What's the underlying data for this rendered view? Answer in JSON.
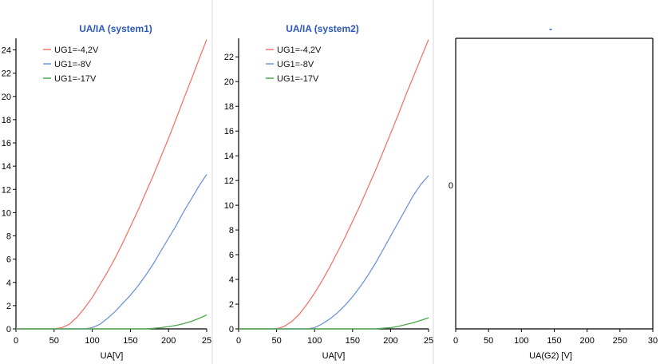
{
  "colors": {
    "series_red": "#f0786a",
    "series_blue": "#6f96d6",
    "series_green": "#4aa84a",
    "title_blue": "#2b57b8"
  },
  "chart_data": [
    {
      "type": "line",
      "title": "UA/IA (system1)",
      "xlabel": "UA[V]",
      "ylabel": "",
      "xlim": [
        0,
        250
      ],
      "ylim": [
        0,
        25
      ],
      "x_ticks": [
        "0",
        "50",
        "100",
        "150",
        "200",
        "25"
      ],
      "y_ticks": [
        "0",
        "2",
        "4",
        "6",
        "8",
        "10",
        "12",
        "14",
        "16",
        "18",
        "20",
        "22",
        "24"
      ],
      "legend_position": "top-left",
      "series": [
        {
          "name": "UG1=-4,2V",
          "color": "#f0786a",
          "x": [
            0,
            50,
            60,
            70,
            80,
            90,
            100,
            110,
            120,
            130,
            140,
            150,
            160,
            170,
            180,
            190,
            200,
            210,
            220,
            230,
            240,
            250
          ],
          "y": [
            0,
            0,
            0.1,
            0.4,
            1.0,
            1.8,
            2.7,
            3.8,
            4.9,
            6.1,
            7.4,
            8.8,
            10.2,
            11.7,
            13.2,
            14.8,
            16.4,
            18.1,
            19.8,
            21.5,
            23.2,
            24.9
          ]
        },
        {
          "name": "UG1=-8V",
          "color": "#6f96d6",
          "x": [
            0,
            90,
            100,
            110,
            120,
            130,
            140,
            150,
            160,
            170,
            180,
            190,
            200,
            210,
            220,
            230,
            240,
            250
          ],
          "y": [
            0,
            0,
            0.1,
            0.4,
            0.9,
            1.5,
            2.2,
            2.9,
            3.7,
            4.6,
            5.6,
            6.7,
            7.8,
            8.9,
            10.1,
            11.2,
            12.3,
            13.3
          ]
        },
        {
          "name": "UG1=-17V",
          "color": "#4aa84a",
          "x": [
            0,
            170,
            180,
            190,
            200,
            210,
            220,
            230,
            240,
            250
          ],
          "y": [
            0,
            0,
            0.05,
            0.1,
            0.2,
            0.3,
            0.45,
            0.65,
            0.9,
            1.2
          ]
        }
      ]
    },
    {
      "type": "line",
      "title": "UA/IA (system2)",
      "xlabel": "UA[V]",
      "ylabel": "",
      "xlim": [
        0,
        250
      ],
      "ylim": [
        0,
        23.5
      ],
      "x_ticks": [
        "0",
        "50",
        "100",
        "150",
        "200",
        "25"
      ],
      "y_ticks": [
        "0",
        "2",
        "4",
        "6",
        "8",
        "10",
        "12",
        "14",
        "16",
        "18",
        "20",
        "22"
      ],
      "legend_position": "top-left",
      "series": [
        {
          "name": "UG1=-4,2V",
          "color": "#f0786a",
          "x": [
            0,
            50,
            60,
            70,
            80,
            90,
            100,
            110,
            120,
            130,
            140,
            150,
            160,
            170,
            180,
            190,
            200,
            210,
            220,
            230,
            240,
            250
          ],
          "y": [
            0,
            0,
            0.2,
            0.6,
            1.2,
            2.0,
            2.9,
            3.9,
            5.0,
            6.2,
            7.4,
            8.7,
            10.0,
            11.4,
            12.8,
            14.3,
            15.8,
            17.3,
            18.9,
            20.4,
            21.9,
            23.4
          ]
        },
        {
          "name": "UG1=-8V",
          "color": "#6f96d6",
          "x": [
            0,
            90,
            100,
            110,
            120,
            130,
            140,
            150,
            160,
            170,
            180,
            190,
            200,
            210,
            220,
            230,
            240,
            250
          ],
          "y": [
            0,
            0,
            0.1,
            0.4,
            0.8,
            1.3,
            1.9,
            2.6,
            3.4,
            4.3,
            5.3,
            6.4,
            7.5,
            8.6,
            9.7,
            10.8,
            11.7,
            12.4
          ]
        },
        {
          "name": "UG1=-17V",
          "color": "#4aa84a",
          "x": [
            0,
            180,
            190,
            200,
            210,
            220,
            230,
            240,
            250
          ],
          "y": [
            0,
            0,
            0.05,
            0.1,
            0.2,
            0.35,
            0.5,
            0.7,
            0.9
          ]
        }
      ]
    },
    {
      "type": "line",
      "title": "-",
      "xlabel": "UA(G2)  [V]",
      "ylabel": "",
      "xlim": [
        0,
        300
      ],
      "x_ticks": [
        "0",
        "50",
        "100",
        "150",
        "200",
        "250",
        "30"
      ],
      "y_ticks": [
        "0"
      ],
      "legend_position": "top-left",
      "series": []
    }
  ]
}
